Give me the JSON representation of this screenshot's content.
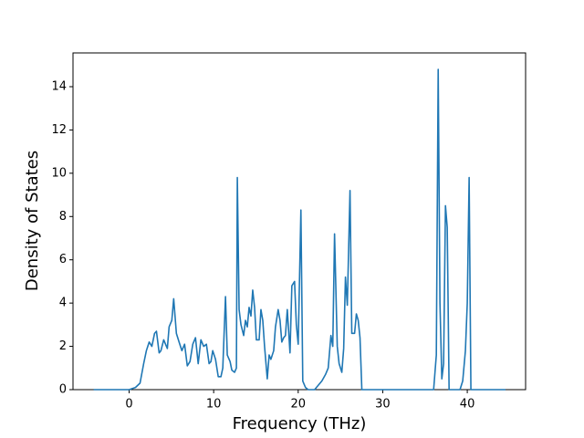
{
  "chart_data": {
    "type": "line",
    "xlabel": "Frequency (THz)",
    "ylabel": "Density of States",
    "x": [
      -4.19,
      0,
      0.75,
      1.29,
      1.72,
      2.04,
      2.37,
      2.69,
      3.01,
      3.23,
      3.55,
      3.76,
      4.09,
      4.52,
      4.73,
      5.05,
      5.27,
      5.59,
      5.91,
      6.24,
      6.56,
      6.88,
      7.2,
      7.53,
      7.85,
      8.17,
      8.49,
      8.82,
      9.14,
      9.46,
      9.68,
      9.89,
      10.22,
      10.54,
      10.86,
      11.08,
      11.4,
      11.61,
      11.94,
      12.15,
      12.47,
      12.69,
      12.8,
      13.01,
      13.23,
      13.55,
      13.76,
      13.98,
      14.19,
      14.41,
      14.62,
      14.84,
      15.05,
      15.38,
      15.59,
      15.81,
      16.02,
      16.34,
      16.56,
      16.77,
      17.1,
      17.31,
      17.63,
      17.85,
      18.06,
      18.28,
      18.49,
      18.71,
      19.03,
      19.25,
      19.57,
      19.78,
      20,
      20.32,
      20.54,
      20.86,
      21.18,
      21.94,
      22.37,
      22.8,
      23.23,
      23.55,
      23.87,
      24.09,
      24.3,
      24.62,
      24.84,
      25.16,
      25.38,
      25.59,
      25.81,
      26.13,
      26.34,
      26.67,
      26.88,
      27.1,
      27.31,
      27.53,
      36.02,
      36.34,
      36.56,
      36.77,
      36.99,
      37.2,
      37.42,
      37.63,
      37.85,
      39.14,
      39.46,
      39.78,
      40,
      40.22,
      40.43,
      44.52
    ],
    "series": [
      {
        "color": "#1f77b4",
        "values": [
          0,
          0,
          0.1,
          0.3,
          1.2,
          1.8,
          2.2,
          2.0,
          2.6,
          2.7,
          1.7,
          1.8,
          2.3,
          1.9,
          2.9,
          3.2,
          4.2,
          2.6,
          2.2,
          1.8,
          2.1,
          1.1,
          1.3,
          2.1,
          2.4,
          1.2,
          2.3,
          2.0,
          2.1,
          1.2,
          1.3,
          1.8,
          1.4,
          0.6,
          0.6,
          1.0,
          4.3,
          1.6,
          1.3,
          0.9,
          0.8,
          1.0,
          9.8,
          3.7,
          3.0,
          2.5,
          3.2,
          2.9,
          3.8,
          3.4,
          4.6,
          3.8,
          2.3,
          2.3,
          3.7,
          3.2,
          2.0,
          0.5,
          1.6,
          1.4,
          1.8,
          2.9,
          3.7,
          3.2,
          2.2,
          2.4,
          2.5,
          3.7,
          1.7,
          4.8,
          5.0,
          3.0,
          2.1,
          8.3,
          0.4,
          0.1,
          0,
          0,
          0.2,
          0.4,
          0.7,
          1.0,
          2.5,
          2.0,
          7.2,
          2.0,
          1.2,
          0.8,
          1.9,
          5.2,
          3.9,
          9.2,
          2.6,
          2.6,
          3.5,
          3.2,
          2.4,
          0,
          0,
          1.6,
          14.8,
          4.0,
          0.5,
          1.2,
          8.5,
          7.5,
          0,
          0,
          0.4,
          1.8,
          4.0,
          9.8,
          0,
          0
        ]
      }
    ],
    "xlim": [
      -6.64,
      46.9
    ],
    "ylim": [
      0,
      15.56
    ],
    "xticks": [
      0,
      10,
      20,
      30,
      40
    ],
    "yticks": [
      0,
      2,
      4,
      6,
      8,
      10,
      12,
      14
    ]
  }
}
